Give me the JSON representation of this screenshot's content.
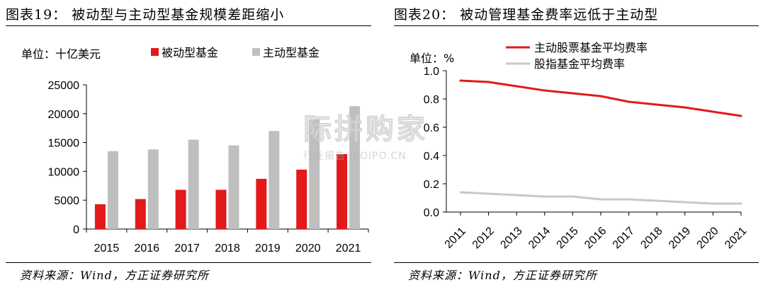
{
  "chart_data": [
    {
      "type": "bar",
      "title": "图表19： 被动型与主动型基金规模差距缩小",
      "unit_label": "单位：十亿美元",
      "categories": [
        "2015",
        "2016",
        "2017",
        "2018",
        "2019",
        "2020",
        "2021"
      ],
      "series": [
        {
          "name": "被动型基金",
          "color": "#e21a1a",
          "values": [
            4300,
            5200,
            6800,
            6800,
            8700,
            10300,
            13000
          ]
        },
        {
          "name": "主动型基金",
          "color": "#bfbfbf",
          "values": [
            13500,
            13800,
            15500,
            14500,
            17000,
            19000,
            21300
          ]
        }
      ],
      "ylim": [
        0,
        25000
      ],
      "yticks": [
        "0",
        "5000",
        "10000",
        "15000",
        "20000",
        "25000"
      ],
      "yticks_values": [
        0,
        5000,
        10000,
        15000,
        20000,
        25000
      ],
      "legend": "top",
      "source": "资料来源：Wind，方正证券研究所"
    },
    {
      "type": "line",
      "title": "图表20： 被动管理基金费率远低于主动型",
      "unit_label": "单位：%",
      "categories": [
        "2011",
        "2012",
        "2013",
        "2014",
        "2015",
        "2016",
        "2017",
        "2018",
        "2019",
        "2020",
        "2021"
      ],
      "series": [
        {
          "name": "主动股票基金平均费率",
          "color": "#e21a1a",
          "values": [
            0.93,
            0.92,
            0.89,
            0.86,
            0.84,
            0.82,
            0.78,
            0.76,
            0.74,
            0.71,
            0.68
          ]
        },
        {
          "name": "股指基金平均费率",
          "color": "#c8c8c8",
          "values": [
            0.14,
            0.13,
            0.12,
            0.11,
            0.11,
            0.09,
            0.09,
            0.08,
            0.07,
            0.06,
            0.06
          ]
        }
      ],
      "ylim": [
        0,
        1.0
      ],
      "yticks": [
        "0.0",
        "0.2",
        "0.4",
        "0.6",
        "0.8",
        "1.0"
      ],
      "yticks_values": [
        0,
        0.2,
        0.4,
        0.6,
        0.8,
        1.0
      ],
      "legend": "top",
      "source": "资料来源：Wind，方正证券研究所"
    }
  ],
  "watermark": {
    "main": "际拼购家",
    "sub": "行业报告 IPOIPO.CN"
  }
}
